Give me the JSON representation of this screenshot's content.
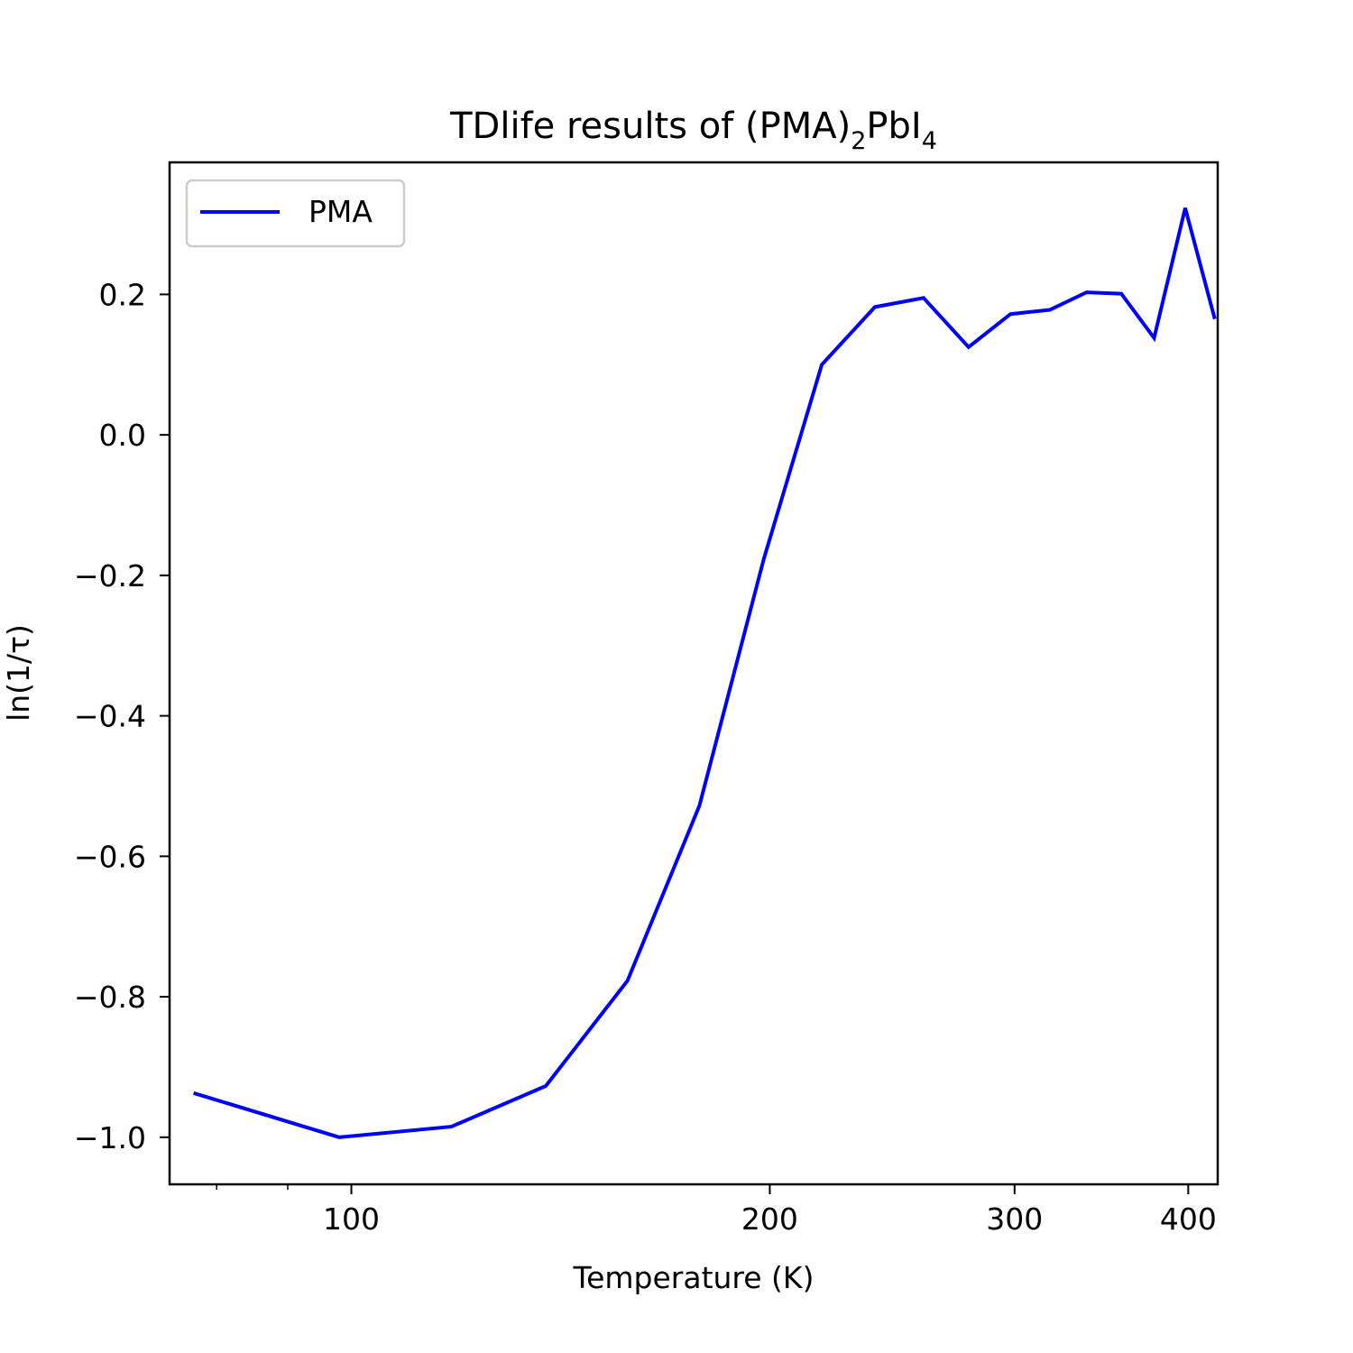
{
  "chart_data": {
    "type": "line",
    "title": {
      "prefix": "TDlife results of (PMA)",
      "sub1": "2",
      "middle": "PbI",
      "sub2": "4"
    },
    "xlabel": "Temperature (K)",
    "ylabel": "ln(1/τ)",
    "x_scale": "log",
    "xlim": [
      74,
      420
    ],
    "ylim": [
      -1.067,
      0.388
    ],
    "x_ticks": [
      100,
      200,
      300,
      400
    ],
    "x_tick_labels": [
      "100",
      "200",
      "300",
      "400"
    ],
    "x_minor_ticks": [
      80,
      90
    ],
    "y_ticks": [
      -1.0,
      -0.8,
      -0.6,
      -0.4,
      -0.2,
      0.0,
      0.2
    ],
    "y_tick_labels": [
      "−1.0",
      "−0.8",
      "−0.6",
      "−0.4",
      "−0.2",
      "0.0",
      "0.2"
    ],
    "grid": false,
    "legend_position": "upper-left",
    "series": [
      {
        "name": "PMA",
        "color": "#0000ff",
        "x": [
          77,
          98,
          118,
          138,
          158,
          178,
          198,
          218,
          238,
          258,
          278,
          298,
          318,
          338,
          358,
          378,
          398,
          418
        ],
        "y": [
          -0.937,
          -1.0,
          -0.985,
          -0.927,
          -0.777,
          -0.528,
          -0.177,
          0.1,
          0.182,
          0.195,
          0.125,
          0.172,
          0.178,
          0.203,
          0.201,
          0.138,
          0.323,
          0.165
        ]
      }
    ]
  }
}
